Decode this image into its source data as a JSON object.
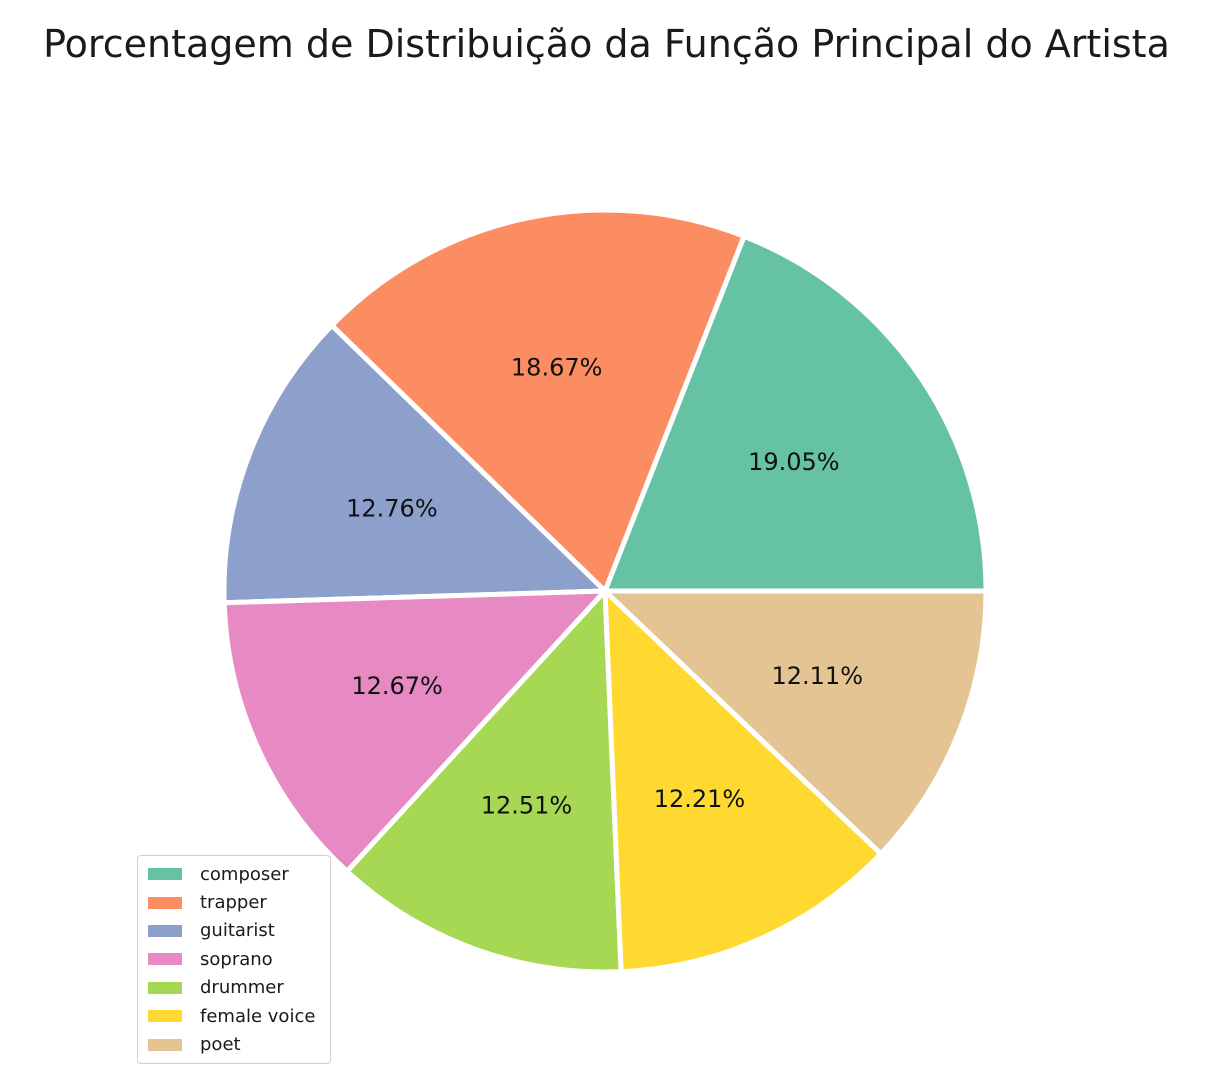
{
  "chart_data": {
    "type": "pie",
    "title": "Porcentagem de Distribuição da Função Principal do Artista",
    "slices": [
      {
        "label": "composer",
        "value": 19.05,
        "pct_label": "19.05%",
        "color": "#66c2a5"
      },
      {
        "label": "trapper",
        "value": 18.67,
        "pct_label": "18.67%",
        "color": "#fc8d62"
      },
      {
        "label": "guitarist",
        "value": 12.76,
        "pct_label": "12.76%",
        "color": "#8da0cb"
      },
      {
        "label": "soprano",
        "value": 12.67,
        "pct_label": "12.67%",
        "color": "#e78ac3"
      },
      {
        "label": "drummer",
        "value": 12.51,
        "pct_label": "12.51%",
        "color": "#a6d854"
      },
      {
        "label": "female voice",
        "value": 12.21,
        "pct_label": "12.21%",
        "color": "#ffd92f"
      },
      {
        "label": "poet",
        "value": 12.11,
        "pct_label": "12.11%",
        "color": "#e5c494"
      }
    ],
    "start_angle_deg": 0,
    "direction": "counterclockwise",
    "legend_position": "lower-left"
  }
}
